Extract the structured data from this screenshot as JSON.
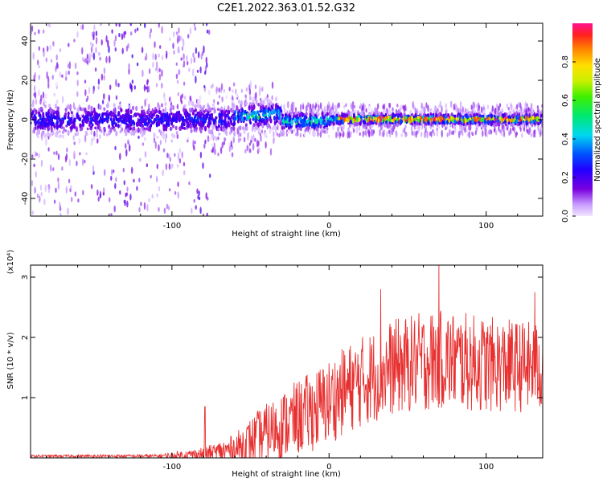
{
  "title": "C2E1.2022.363.01.52.G32",
  "colors": {
    "snr_line": "#e83030",
    "axis": "#000000"
  },
  "chart_data": [
    {
      "type": "heatmap",
      "xlabel": "Height of straight line (km)",
      "ylabel": "Frequency (Hz)",
      "xlim": [
        -190,
        136
      ],
      "ylim": [
        -49,
        49
      ],
      "xticks": [
        -100,
        0,
        100
      ],
      "yticks": [
        -40,
        -20,
        0,
        20,
        40
      ],
      "colorbar": {
        "label": "Normalized spectral amplitude",
        "range": [
          0.0,
          1.0
        ],
        "ticks": [
          "0.0",
          "0.2",
          "0.4",
          "0.6",
          "0.8"
        ],
        "colormap": "rainbow"
      },
      "description_points": [
        {
          "x": -190,
          "y_center": 0,
          "spread": 8,
          "amp": 0.2
        },
        {
          "x": -60,
          "y_center": 2,
          "spread": 6,
          "amp": 0.35
        },
        {
          "x": -20,
          "y_center": 0,
          "spread": 4,
          "amp": 0.5
        },
        {
          "x": 10,
          "y_center": 0,
          "spread": 3,
          "amp": 0.8
        },
        {
          "x": 136,
          "y_center": 0,
          "spread": 3,
          "amp": 0.85
        }
      ]
    },
    {
      "type": "line",
      "xlabel": "Height of straight line (km)",
      "ylabel": "SNR (10 * v/v)",
      "yscale_label": "(x10⁴)",
      "xlim": [
        -190,
        136
      ],
      "ylim": [
        0,
        3.2
      ],
      "xticks": [
        -100,
        0,
        100
      ],
      "yticks": [
        1,
        2,
        3
      ],
      "series": [
        {
          "color": "#e83030",
          "envelope": [
            {
              "x": -190,
              "mean": 0.03,
              "amp": 0.02
            },
            {
              "x": -110,
              "mean": 0.03,
              "amp": 0.03
            },
            {
              "x": -90,
              "mean": 0.05,
              "amp": 0.08
            },
            {
              "x": -75,
              "mean": 0.07,
              "amp": 0.15
            },
            {
              "x": -60,
              "mean": 0.15,
              "amp": 0.25
            },
            {
              "x": -45,
              "mean": 0.35,
              "amp": 0.45
            },
            {
              "x": -25,
              "mean": 0.6,
              "amp": 0.6
            },
            {
              "x": -5,
              "mean": 0.85,
              "amp": 0.7
            },
            {
              "x": 15,
              "mean": 1.2,
              "amp": 0.75
            },
            {
              "x": 40,
              "mean": 1.5,
              "amp": 0.8
            },
            {
              "x": 70,
              "mean": 1.65,
              "amp": 0.85
            },
            {
              "x": 100,
              "mean": 1.55,
              "amp": 0.8
            },
            {
              "x": 136,
              "mean": 1.5,
              "amp": 0.75
            }
          ],
          "peaks": [
            {
              "x": -79,
              "y": 0.85
            },
            {
              "x": 70,
              "y": 3.2
            },
            {
              "x": 33,
              "y": 2.8
            },
            {
              "x": 131,
              "y": 2.75
            }
          ]
        }
      ]
    }
  ]
}
